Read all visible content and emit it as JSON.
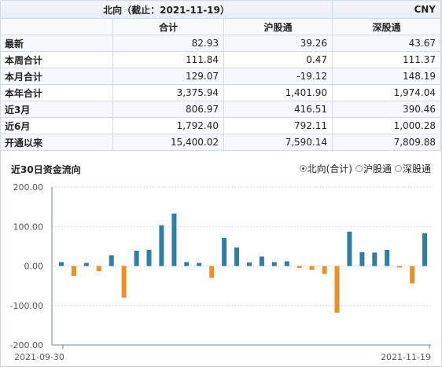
{
  "table": {
    "title": "北向（截止：2021-11-19）",
    "unit": "CNY",
    "columns": [
      "合计",
      "沪股通",
      "深股通"
    ],
    "rows": [
      {
        "label": "最新",
        "values": [
          "82.93",
          "39.26",
          "43.67"
        ]
      },
      {
        "label": "本周合计",
        "values": [
          "111.84",
          "0.47",
          "111.37"
        ]
      },
      {
        "label": "本月合计",
        "values": [
          "129.07",
          "-19.12",
          "148.19"
        ]
      },
      {
        "label": "本年合计",
        "values": [
          "3,375.94",
          "1,401.90",
          "1,974.04"
        ]
      },
      {
        "label": "近3月",
        "values": [
          "806.97",
          "416.51",
          "390.46"
        ]
      },
      {
        "label": "近6月",
        "values": [
          "1,792.40",
          "792.11",
          "1,000.28"
        ]
      },
      {
        "label": "开通以来",
        "values": [
          "15,400.02",
          "7,590.14",
          "7,809.88"
        ]
      }
    ]
  },
  "chart_header": {
    "title": "近30日资金流向",
    "options": [
      {
        "label": "北向(合计)",
        "selected": true
      },
      {
        "label": "沪股通",
        "selected": false
      },
      {
        "label": "深股通",
        "selected": false
      }
    ]
  },
  "colors": {
    "positive": "#2e7ea6",
    "negative": "#ef8f22",
    "grid": "#c9d8e8",
    "axis": "#6a8aa8"
  },
  "chart_data": {
    "type": "bar",
    "title": "近30日资金流向",
    "xlabel": "",
    "ylabel": "",
    "ylim": [
      -200,
      200
    ],
    "yticks": [
      "200.00",
      "100.00",
      "0.00",
      "-100.00",
      "-200.00"
    ],
    "yticks_values": [
      200,
      100,
      0,
      -100,
      -200
    ],
    "x_start_label": "2021-09-30",
    "x_end_label": "2021-11-19",
    "values": [
      10,
      -25,
      8,
      -13,
      27,
      -80,
      39,
      41,
      103,
      133,
      10,
      8,
      -30,
      71,
      47,
      9,
      24,
      10,
      12,
      -5,
      -10,
      -20,
      -118,
      87,
      35,
      34,
      41,
      -4,
      -44,
      83
    ]
  }
}
